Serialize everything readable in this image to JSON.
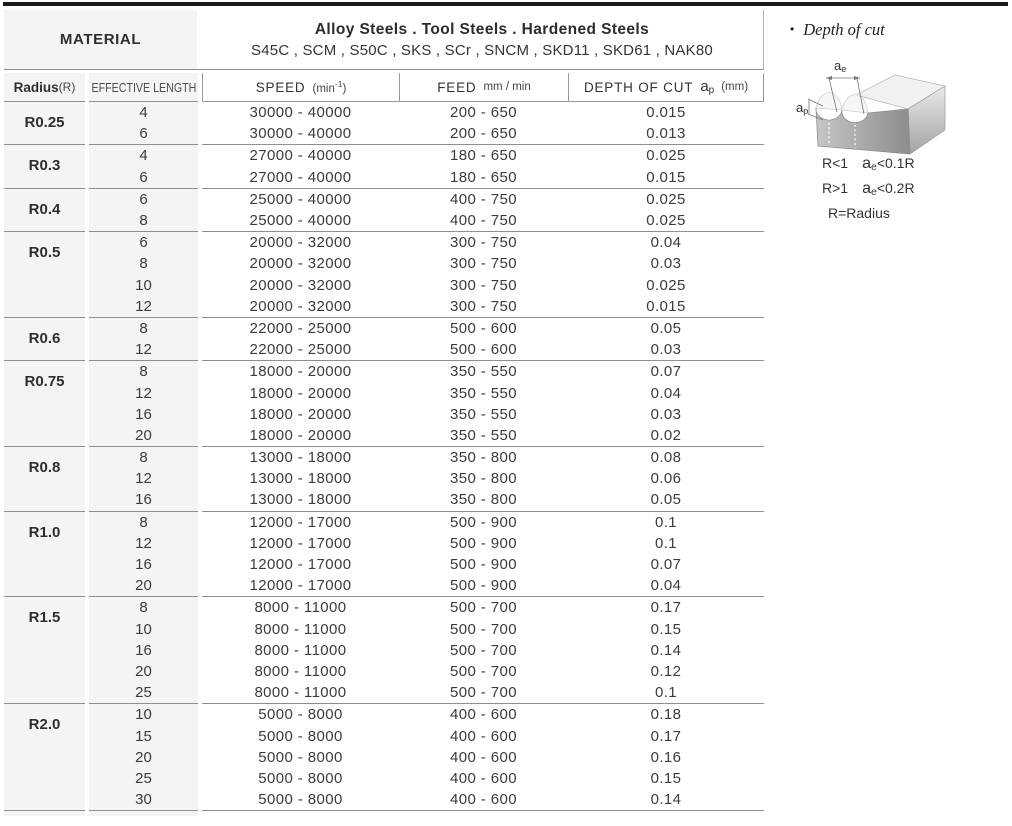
{
  "colors": {
    "top_bar": "#1a1a1a",
    "line": "#8f8f8f",
    "cell_bg": "#f4f4f2",
    "text": "#3b3b3b"
  },
  "header": {
    "material_label": "MATERIAL",
    "material_value_line1": "Alloy Steels . Tool Steels . Hardened Steels",
    "material_value_line2": "S45C , SCM , S50C , SKS , SCr , SNCM , SKD11 , SKD61 , NAK80"
  },
  "columns": {
    "radius_label": "Radius",
    "radius_suffix": "(R)",
    "effective_length_label": "EFFECTIVE LENGTH",
    "speed_label": "SPEED",
    "speed_unit_open": "(min",
    "speed_unit_sup": "-1",
    "speed_unit_close": ")",
    "feed_label": "FEED",
    "feed_unit": "mm / min",
    "depth_label": "DEPTH OF CUT",
    "depth_sym_base": "a",
    "depth_sym_sub": "p",
    "depth_unit": "(mm)"
  },
  "table": {
    "groups": [
      {
        "radius": "R0.25",
        "rows": [
          {
            "len": "4",
            "speed": "30000 - 40000",
            "feed": "200 - 650",
            "depth": "0.015"
          },
          {
            "len": "6",
            "speed": "30000 - 40000",
            "feed": "200 - 650",
            "depth": "0.013"
          }
        ]
      },
      {
        "radius": "R0.3",
        "rows": [
          {
            "len": "4",
            "speed": "27000 - 40000",
            "feed": "180 - 650",
            "depth": "0.025"
          },
          {
            "len": "6",
            "speed": "27000 - 40000",
            "feed": "180 - 650",
            "depth": "0.015"
          }
        ]
      },
      {
        "radius": "R0.4",
        "rows": [
          {
            "len": "6",
            "speed": "25000 - 40000",
            "feed": "400 - 750",
            "depth": "0.025"
          },
          {
            "len": "8",
            "speed": "25000 - 40000",
            "feed": "400 - 750",
            "depth": "0.025"
          }
        ]
      },
      {
        "radius": "R0.5",
        "rows": [
          {
            "len": "6",
            "speed": "20000 - 32000",
            "feed": "300 - 750",
            "depth": "0.04"
          },
          {
            "len": "8",
            "speed": "20000 - 32000",
            "feed": "300 - 750",
            "depth": "0.03"
          },
          {
            "len": "10",
            "speed": "20000 - 32000",
            "feed": "300 - 750",
            "depth": "0.025"
          },
          {
            "len": "12",
            "speed": "20000 - 32000",
            "feed": "300 - 750",
            "depth": "0.015"
          }
        ]
      },
      {
        "radius": "R0.6",
        "rows": [
          {
            "len": "8",
            "speed": "22000 - 25000",
            "feed": "500 - 600",
            "depth": "0.05"
          },
          {
            "len": "12",
            "speed": "22000 - 25000",
            "feed": "500 - 600",
            "depth": "0.03"
          }
        ]
      },
      {
        "radius": "R0.75",
        "rows": [
          {
            "len": "8",
            "speed": "18000 - 20000",
            "feed": "350 - 550",
            "depth": "0.07"
          },
          {
            "len": "12",
            "speed": "18000 - 20000",
            "feed": "350 - 550",
            "depth": "0.04"
          },
          {
            "len": "16",
            "speed": "18000 - 20000",
            "feed": "350 - 550",
            "depth": "0.03"
          },
          {
            "len": "20",
            "speed": "18000 - 20000",
            "feed": "350 - 550",
            "depth": "0.02"
          }
        ]
      },
      {
        "radius": "R0.8",
        "rows": [
          {
            "len": "8",
            "speed": "13000 - 18000",
            "feed": "350 - 800",
            "depth": "0.08"
          },
          {
            "len": "12",
            "speed": "13000 - 18000",
            "feed": "350 - 800",
            "depth": "0.06"
          },
          {
            "len": "16",
            "speed": "13000 - 18000",
            "feed": "350 - 800",
            "depth": "0.05"
          }
        ]
      },
      {
        "radius": "R1.0",
        "rows": [
          {
            "len": "8",
            "speed": "12000 - 17000",
            "feed": "500 - 900",
            "depth": "0.1"
          },
          {
            "len": "12",
            "speed": "12000 - 17000",
            "feed": "500 - 900",
            "depth": "0.1"
          },
          {
            "len": "16",
            "speed": "12000 - 17000",
            "feed": "500 - 900",
            "depth": "0.07"
          },
          {
            "len": "20",
            "speed": "12000 - 17000",
            "feed": "500 - 900",
            "depth": "0.04"
          }
        ]
      },
      {
        "radius": "R1.5",
        "rows": [
          {
            "len": "8",
            "speed": "8000 - 11000",
            "feed": "500 - 700",
            "depth": "0.17"
          },
          {
            "len": "10",
            "speed": "8000 - 11000",
            "feed": "500 - 700",
            "depth": "0.15"
          },
          {
            "len": "16",
            "speed": "8000 - 11000",
            "feed": "500 - 700",
            "depth": "0.14"
          },
          {
            "len": "20",
            "speed": "8000 - 11000",
            "feed": "500 - 700",
            "depth": "0.12"
          },
          {
            "len": "25",
            "speed": "8000 - 11000",
            "feed": "500 - 700",
            "depth": "0.1"
          }
        ]
      },
      {
        "radius": "R2.0",
        "rows": [
          {
            "len": "10",
            "speed": "5000 - 8000",
            "feed": "400 - 600",
            "depth": "0.18"
          },
          {
            "len": "15",
            "speed": "5000 - 8000",
            "feed": "400 - 600",
            "depth": "0.17"
          },
          {
            "len": "20",
            "speed": "5000 - 8000",
            "feed": "400 - 600",
            "depth": "0.16"
          },
          {
            "len": "25",
            "speed": "5000 - 8000",
            "feed": "400 - 600",
            "depth": "0.15"
          },
          {
            "len": "30",
            "speed": "5000 - 8000",
            "feed": "400 - 600",
            "depth": "0.14"
          }
        ]
      }
    ]
  },
  "side_panel": {
    "bullet": "•",
    "title": "Depth of cut",
    "labels": {
      "ae_base": "a",
      "ae_sub": "e",
      "ap_base": "a",
      "ap_sub": "p"
    },
    "notes": [
      {
        "cond": "R<1",
        "a_base": "a",
        "a_sub": "e",
        "rest": "<0.1R"
      },
      {
        "cond": "R>1",
        "a_base": "a",
        "a_sub": "e",
        "rest": "<0.2R"
      }
    ],
    "radius_note": "R=Radius"
  }
}
